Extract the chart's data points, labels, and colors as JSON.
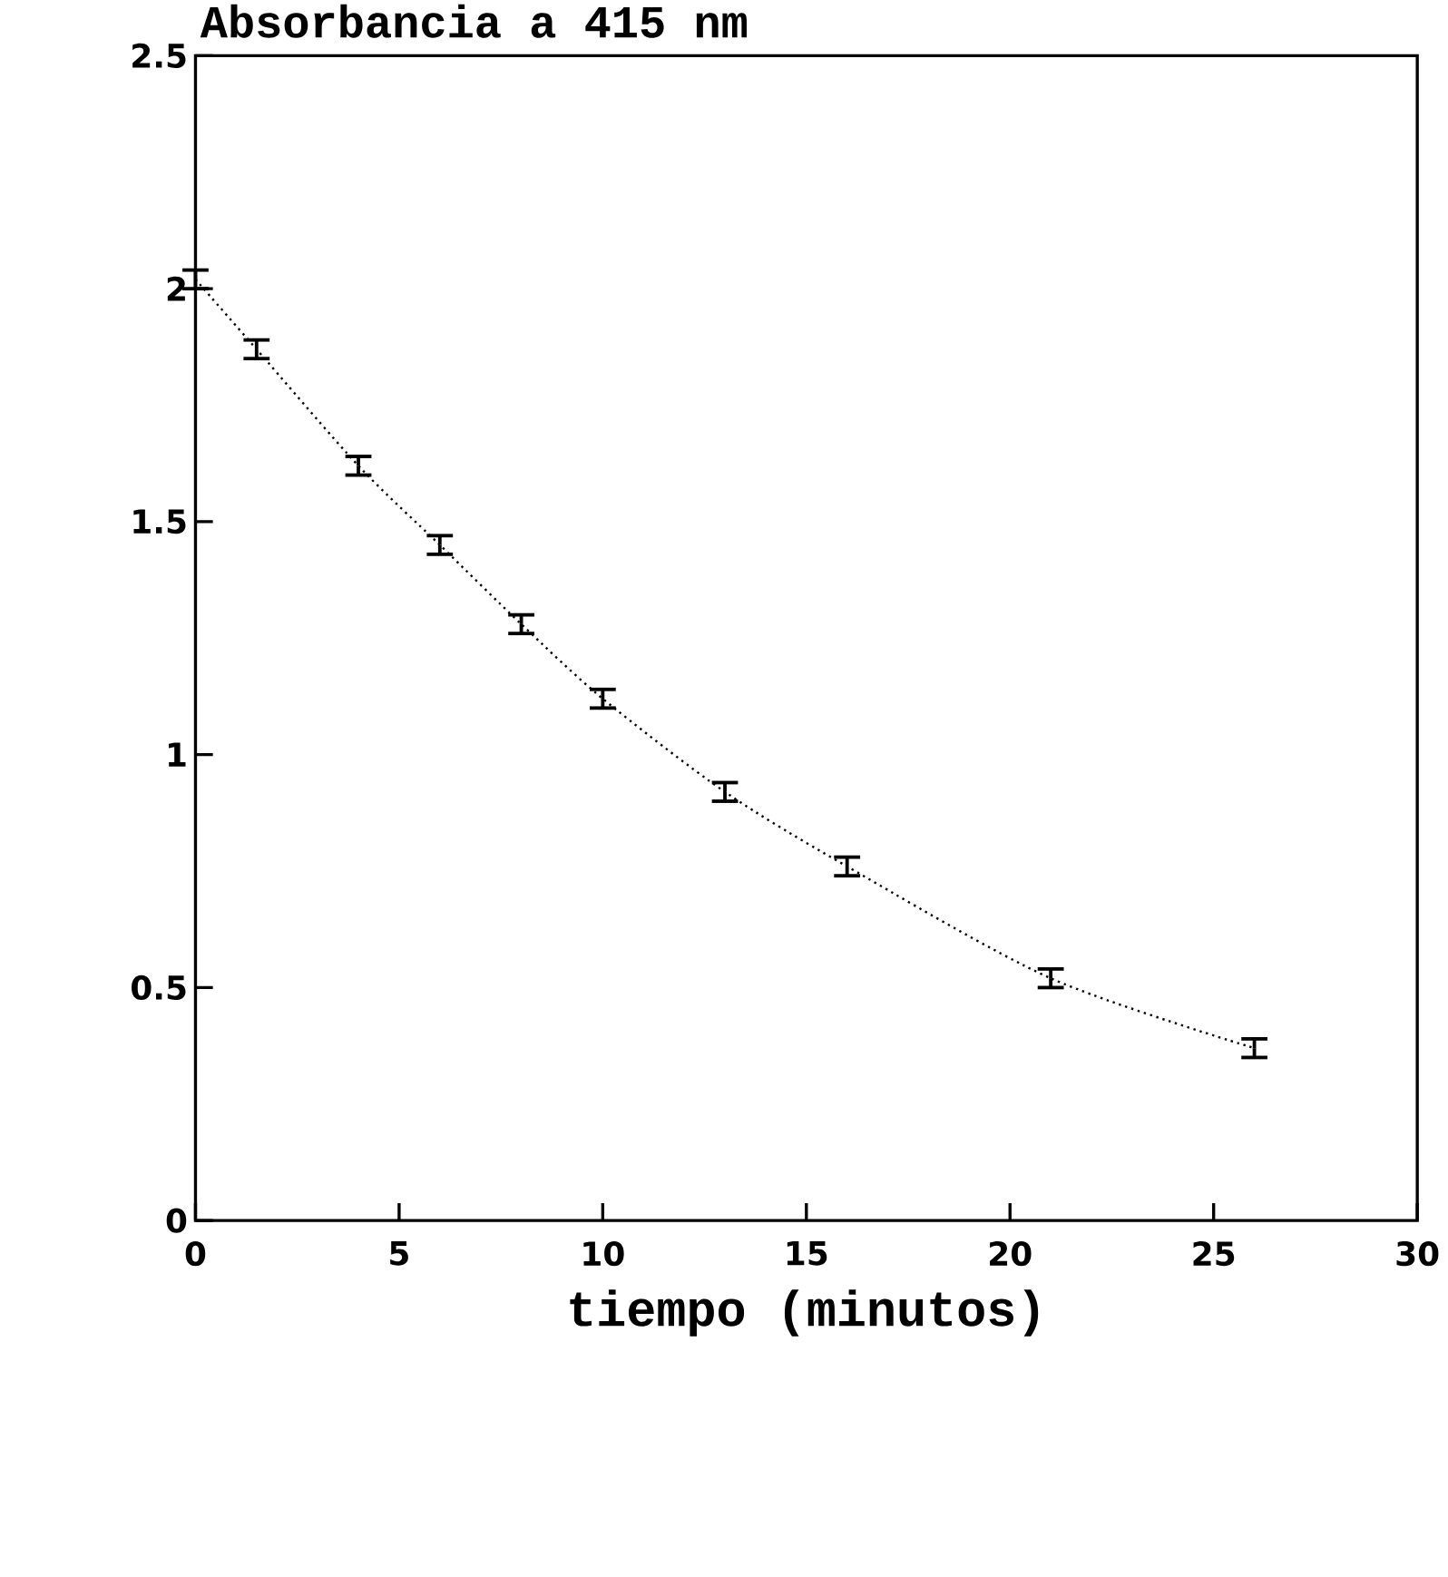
{
  "chart_data": {
    "type": "line",
    "title": "Absorbancia a 415 nm",
    "xlabel": "tiempo (minutos)",
    "x": [
      0,
      1.5,
      4,
      6,
      8,
      10,
      13,
      16,
      21,
      26
    ],
    "series": [
      {
        "color": "#000000",
        "values": [
          2.02,
          1.87,
          1.62,
          1.45,
          1.28,
          1.12,
          0.92,
          0.76,
          0.52,
          0.37
        ],
        "errors": [
          0.02,
          0.02,
          0.02,
          0.02,
          0.02,
          0.02,
          0.02,
          0.02,
          0.02,
          0.02
        ]
      }
    ],
    "xlim": [
      0,
      30
    ],
    "xticks": [
      0,
      5,
      10,
      15,
      20,
      25,
      30
    ],
    "ylim": [
      0,
      2.5
    ],
    "yticks": [
      0,
      0.5,
      1,
      1.5,
      2,
      2.5
    ],
    "line_style": "dotted",
    "grid": false
  }
}
